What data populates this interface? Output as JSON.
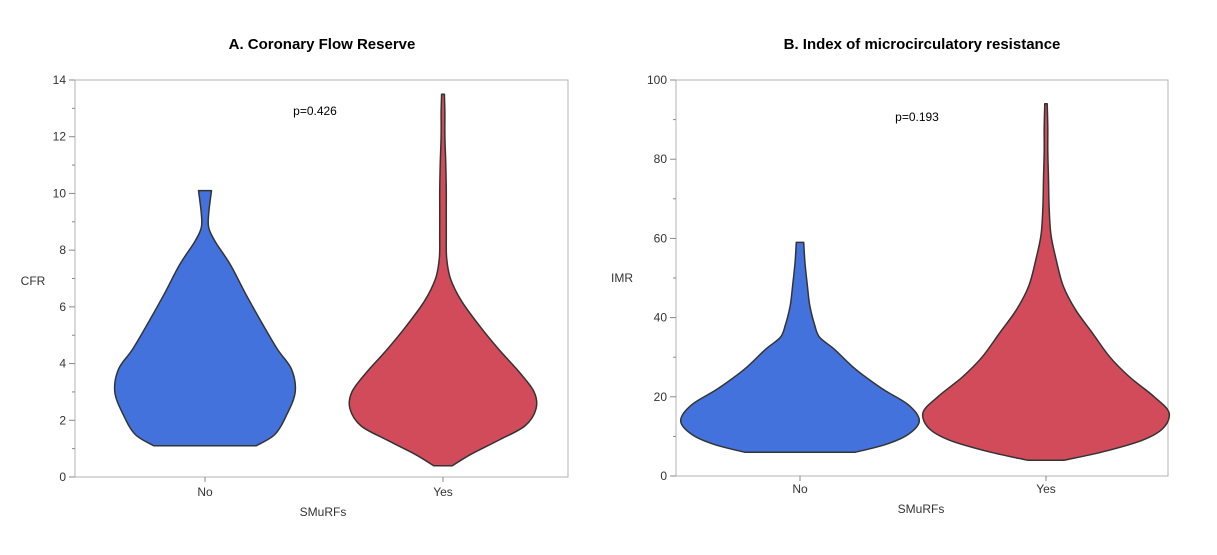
{
  "chart_data": [
    {
      "type": "violin",
      "title": "A. Coronary Flow Reserve",
      "xlabel": "SMuRFs",
      "ylabel": "CFR",
      "ylim": [
        0,
        14
      ],
      "y_major_ticks": [
        0,
        2,
        4,
        6,
        8,
        10,
        12,
        14
      ],
      "y_tick_labels": [
        "0",
        "2",
        "4",
        "6",
        "8",
        "10",
        "12",
        "14"
      ],
      "categories": [
        "No",
        "Yes"
      ],
      "annotation": "p=0.426",
      "series": [
        {
          "name": "No",
          "color": "#4472DC",
          "min": 1.1,
          "max": 10.1,
          "profile": [
            [
              1.1,
              0.55
            ],
            [
              1.5,
              0.75
            ],
            [
              2.2,
              0.88
            ],
            [
              3.0,
              0.97
            ],
            [
              3.8,
              0.93
            ],
            [
              4.5,
              0.78
            ],
            [
              5.5,
              0.6
            ],
            [
              6.5,
              0.43
            ],
            [
              7.5,
              0.27
            ],
            [
              8.3,
              0.11
            ],
            [
              8.8,
              0.04
            ],
            [
              9.3,
              0.04
            ],
            [
              10.1,
              0.07
            ]
          ]
        },
        {
          "name": "Yes",
          "color": "#D24B5A",
          "min": 0.4,
          "max": 13.5,
          "profile": [
            [
              0.4,
              0.1
            ],
            [
              0.8,
              0.3
            ],
            [
              1.3,
              0.6
            ],
            [
              1.8,
              0.88
            ],
            [
              2.4,
              1.0
            ],
            [
              3.0,
              0.98
            ],
            [
              3.7,
              0.82
            ],
            [
              4.5,
              0.6
            ],
            [
              5.3,
              0.4
            ],
            [
              6.2,
              0.2
            ],
            [
              7.0,
              0.08
            ],
            [
              7.7,
              0.04
            ],
            [
              8.5,
              0.035
            ],
            [
              10,
              0.035
            ],
            [
              11,
              0.03
            ],
            [
              12,
              0.02
            ],
            [
              12.8,
              0.02
            ],
            [
              13.5,
              0.015
            ]
          ]
        }
      ]
    },
    {
      "type": "violin",
      "title": "B. Index of microcirculatory resistance",
      "xlabel": "SMuRFs",
      "ylabel": "IMR",
      "ylim": [
        0,
        100
      ],
      "y_major_ticks": [
        0,
        20,
        40,
        60,
        80,
        100
      ],
      "y_tick_labels": [
        "0",
        "20",
        "40",
        "60",
        "80",
        "100"
      ],
      "categories": [
        "No",
        "Yes"
      ],
      "annotation": "p=0.193",
      "series": [
        {
          "name": "No",
          "color": "#4472DC",
          "min": 6,
          "max": 59,
          "profile": [
            [
              6,
              0.45
            ],
            [
              8,
              0.7
            ],
            [
              10.5,
              0.88
            ],
            [
              14,
              0.97
            ],
            [
              18,
              0.88
            ],
            [
              22,
              0.67
            ],
            [
              27,
              0.45
            ],
            [
              32,
              0.28
            ],
            [
              35,
              0.16
            ],
            [
              38,
              0.12
            ],
            [
              43,
              0.08
            ],
            [
              48,
              0.06
            ],
            [
              54,
              0.04
            ],
            [
              59,
              0.03
            ]
          ]
        },
        {
          "name": "Yes",
          "color": "#D24B5A",
          "min": 4,
          "max": 94,
          "profile": [
            [
              4,
              0.15
            ],
            [
              6,
              0.45
            ],
            [
              9,
              0.78
            ],
            [
              12,
              0.95
            ],
            [
              16,
              1.0
            ],
            [
              20,
              0.88
            ],
            [
              25,
              0.68
            ],
            [
              30,
              0.52
            ],
            [
              36,
              0.38
            ],
            [
              42,
              0.24
            ],
            [
              48,
              0.14
            ],
            [
              55,
              0.08
            ],
            [
              61,
              0.04
            ],
            [
              68,
              0.025
            ],
            [
              75,
              0.02
            ],
            [
              82,
              0.015
            ],
            [
              88,
              0.015
            ],
            [
              94,
              0.01
            ]
          ]
        }
      ]
    }
  ]
}
